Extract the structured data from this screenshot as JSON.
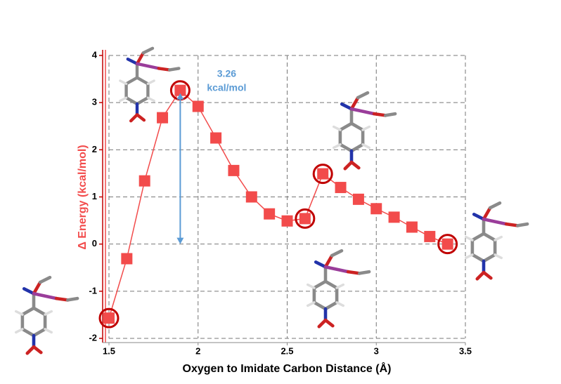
{
  "chart_data": {
    "type": "line",
    "x_label": "Oxygen to Imidate Carbon Distance (Å)",
    "y_label": "Δ Energy (kcal/mol)",
    "x": [
      1.5,
      1.6,
      1.7,
      1.8,
      1.9,
      2.0,
      2.1,
      2.2,
      2.3,
      2.4,
      2.5,
      2.6,
      2.7,
      2.8,
      2.9,
      3.0,
      3.1,
      3.2,
      3.3,
      3.4
    ],
    "series": [
      {
        "color": "#f24b4b",
        "values": [
          -1.57,
          -0.31,
          1.34,
          2.68,
          3.26,
          2.92,
          2.25,
          1.56,
          1.0,
          0.64,
          0.49,
          0.54,
          1.49,
          1.2,
          0.95,
          0.75,
          0.57,
          0.36,
          0.16,
          0.0
        ]
      }
    ],
    "highlighted": [
      1.5,
      1.9,
      2.6,
      2.7,
      3.4
    ],
    "highlight_color": "#c00000",
    "xlim": [
      1.5,
      3.5
    ],
    "xticks": [
      1.5,
      2,
      2.5,
      3,
      3.5
    ],
    "ylim": [
      -2,
      4
    ],
    "yticks": [
      -2,
      -1,
      0,
      1,
      2,
      3,
      4
    ],
    "grid": true,
    "annotation": {
      "label": 3.26,
      "unit": "kcal/mol",
      "x": 1.9,
      "y_from": 0,
      "y_to": 3.26,
      "color": "#5b9bd5"
    }
  }
}
